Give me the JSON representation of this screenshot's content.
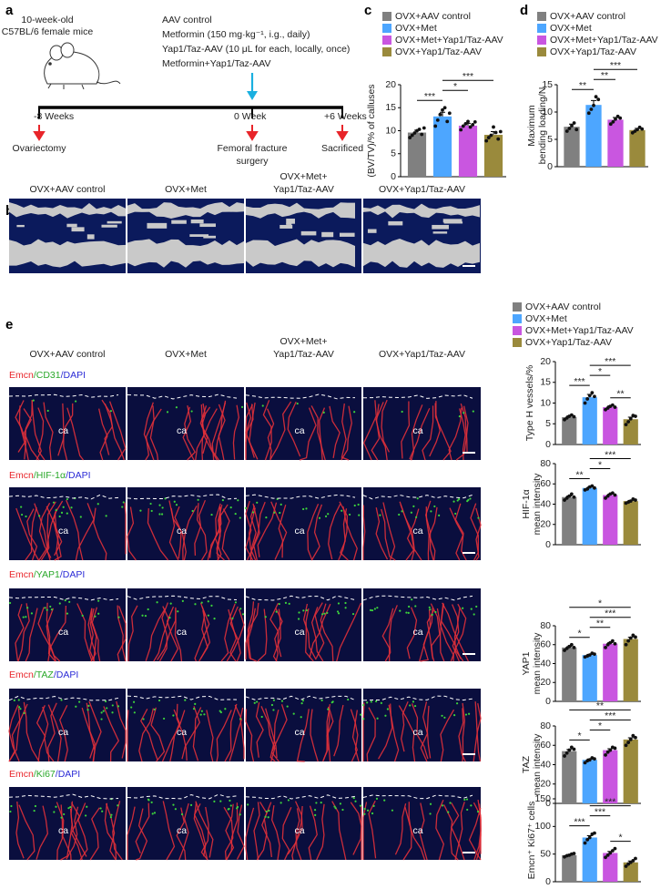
{
  "panel_labels": [
    "a",
    "b",
    "c",
    "d",
    "e"
  ],
  "groups": {
    "names": [
      "OVX+AAV control",
      "OVX+Met",
      "OVX+Met+Yap1/Taz-AAV",
      "OVX+Yap1/Taz-AAV"
    ],
    "colors": [
      "#808080",
      "#4da6ff",
      "#c956e0",
      "#9a8a3c"
    ]
  },
  "timeline": {
    "mouse": [
      "10-week-old",
      "C57BL/6 female mice"
    ],
    "treatments": [
      "AAV control",
      "Metformin (150 mg·kg⁻¹, i.g., daily)",
      "Yap1/Taz-AAV (10 μL for each, locally, once)",
      "Metformin+Yap1/Taz-AAV"
    ],
    "timepoints": [
      "-8 Weeks",
      "0 Week",
      "+6 Weeks"
    ],
    "events": [
      [
        "Ovariectomy"
      ],
      [
        "Femoral fracture",
        "surgery"
      ],
      [
        "Sacrificed"
      ]
    ]
  },
  "column_headers": [
    [
      "OVX+AAV control"
    ],
    [
      "OVX+Met"
    ],
    [
      "OVX+Met+",
      "Yap1/Taz-AAV"
    ],
    [
      "OVX+Yap1/Taz-AAV"
    ]
  ],
  "stain_rows": [
    [
      {
        "text": "Emcn",
        "color": "#e8252a"
      },
      {
        "text": "/CD31",
        "color": "#2aa82a"
      },
      {
        "text": "/DAPI",
        "color": "#2b2bd6"
      }
    ],
    [
      {
        "text": "Emcn",
        "color": "#e8252a"
      },
      {
        "text": "/HIF-1α",
        "color": "#2aa82a"
      },
      {
        "text": "/DAPI",
        "color": "#2b2bd6"
      }
    ],
    [
      {
        "text": "Emcn",
        "color": "#e8252a"
      },
      {
        "text": "/YAP1",
        "color": "#2aa82a"
      },
      {
        "text": "/DAPI",
        "color": "#2b2bd6"
      }
    ],
    [
      {
        "text": "Emcn",
        "color": "#e8252a"
      },
      {
        "text": "/TAZ",
        "color": "#2aa82a"
      },
      {
        "text": "/DAPI",
        "color": "#2b2bd6"
      }
    ],
    [
      {
        "text": "Emcn",
        "color": "#e8252a"
      },
      {
        "text": "/Ki67",
        "color": "#2aa82a"
      },
      {
        "text": "/DAPI",
        "color": "#2b2bd6"
      }
    ]
  ],
  "image_label": "ca",
  "chart_data": [
    {
      "type": "bar",
      "ylabel": [
        "(BV/TV)/% of calluses"
      ],
      "ylim": [
        0,
        20
      ],
      "yticks": [
        0,
        5,
        10,
        15,
        20
      ],
      "values": [
        9.6,
        13.1,
        11.1,
        9.1
      ],
      "errors": [
        0.5,
        0.9,
        0.5,
        0.7
      ],
      "points": [
        [
          8.5,
          9.0,
          9.5,
          10.0,
          10.3,
          9.2,
          10.6
        ],
        [
          11.0,
          12.3,
          13.5,
          14.5,
          15.0,
          12.0,
          13.8
        ],
        [
          10.2,
          11.0,
          11.5,
          12.0,
          10.8,
          11.3,
          11.9
        ],
        [
          7.8,
          8.5,
          9.0,
          10.8,
          9.6,
          8.2,
          9.8
        ]
      ],
      "significance": [
        {
          "from": 0,
          "to": 1,
          "label": "***"
        },
        {
          "from": 1,
          "to": 2,
          "label": "*"
        },
        {
          "from": 1,
          "to": 3,
          "label": "***"
        }
      ]
    },
    {
      "type": "bar",
      "ylabel": [
        "Maximum",
        "bending loading/N"
      ],
      "ylim": [
        0,
        15
      ],
      "yticks": [
        0,
        5,
        10,
        15
      ],
      "values": [
        7.3,
        11.3,
        8.6,
        6.7
      ],
      "errors": [
        0.5,
        0.8,
        0.4,
        0.3
      ],
      "points": [
        [
          6.5,
          7.0,
          7.5,
          8.0,
          6.8
        ],
        [
          9.8,
          10.5,
          11.2,
          12.8,
          12.3
        ],
        [
          7.8,
          8.2,
          8.7,
          9.2,
          8.9
        ],
        [
          6.2,
          6.5,
          6.8,
          7.2,
          6.9
        ]
      ],
      "significance": [
        {
          "from": 0,
          "to": 1,
          "label": "**"
        },
        {
          "from": 1,
          "to": 2,
          "label": "**"
        },
        {
          "from": 1,
          "to": 3,
          "label": "***"
        }
      ]
    },
    {
      "type": "bar",
      "ylabel": [
        "Type H vessels/%"
      ],
      "ylim": [
        0,
        20
      ],
      "yticks": [
        0,
        5,
        10,
        15,
        20
      ],
      "values": [
        6.6,
        11.4,
        9.0,
        6.1
      ],
      "errors": [
        0.3,
        0.7,
        0.3,
        0.5
      ],
      "points": [
        [
          6.0,
          6.4,
          6.8,
          7.1,
          6.7
        ],
        [
          10.0,
          11.0,
          11.8,
          12.5,
          11.6
        ],
        [
          8.4,
          8.8,
          9.2,
          9.5,
          9.0
        ],
        [
          4.8,
          5.5,
          6.2,
          7.0,
          6.8
        ]
      ],
      "significance": [
        {
          "from": 0,
          "to": 1,
          "label": "***"
        },
        {
          "from": 2,
          "to": 3,
          "label": "**"
        },
        {
          "from": 1,
          "to": 2,
          "label": "*"
        },
        {
          "from": 1,
          "to": 3,
          "label": "***"
        }
      ]
    },
    {
      "type": "bar",
      "ylabel": [
        "HIF-1α",
        "mean intensity"
      ],
      "ylim": [
        0,
        80
      ],
      "yticks": [
        0,
        20,
        40,
        60,
        80
      ],
      "values": [
        47,
        56,
        49,
        43
      ],
      "errors": [
        1.1,
        0.8,
        0.9,
        0.7
      ],
      "points": [
        [
          44,
          46,
          48,
          50,
          47
        ],
        [
          54,
          55,
          57,
          58,
          56
        ],
        [
          46,
          48,
          50,
          51,
          49
        ],
        [
          41,
          42,
          43,
          45,
          44
        ]
      ],
      "significance": [
        {
          "from": 0,
          "to": 1,
          "label": "**"
        },
        {
          "from": 1,
          "to": 2,
          "label": "*"
        },
        {
          "from": 1,
          "to": 3,
          "label": "***"
        }
      ]
    },
    {
      "type": "bar",
      "ylabel": [
        "YAP1",
        "mean intensity"
      ],
      "ylim": [
        0,
        80
      ],
      "yticks": [
        0,
        20,
        40,
        60,
        80
      ],
      "values": [
        57,
        49,
        61,
        66
      ],
      "errors": [
        1.0,
        0.7,
        1.2,
        1.8
      ],
      "points": [
        [
          54,
          56,
          58,
          60,
          57
        ],
        [
          47,
          48,
          49,
          51,
          50
        ],
        [
          57,
          60,
          62,
          64,
          61
        ],
        [
          60,
          64,
          67,
          70,
          68
        ]
      ],
      "significance": [
        {
          "from": 0,
          "to": 1,
          "label": "*"
        },
        {
          "from": 1,
          "to": 2,
          "label": "**"
        },
        {
          "from": 1,
          "to": 3,
          "label": "***"
        },
        {
          "from": 0,
          "to": 3,
          "label": "*"
        }
      ]
    },
    {
      "type": "bar",
      "ylabel": [
        "TAZ",
        "mean intensity"
      ],
      "ylim": [
        0,
        80
      ],
      "yticks": [
        0,
        20,
        40,
        60,
        80
      ],
      "values": [
        54,
        45,
        55,
        66
      ],
      "errors": [
        1.6,
        0.9,
        1.5,
        1.8
      ],
      "points": [
        [
          49,
          52,
          55,
          58,
          56
        ],
        [
          42,
          44,
          45,
          47,
          46
        ],
        [
          50,
          53,
          55,
          58,
          57
        ],
        [
          60,
          63,
          66,
          70,
          68
        ]
      ],
      "significance": [
        {
          "from": 0,
          "to": 1,
          "label": "*"
        },
        {
          "from": 1,
          "to": 2,
          "label": "*"
        },
        {
          "from": 1,
          "to": 3,
          "label": "***"
        },
        {
          "from": 0,
          "to": 3,
          "label": "**"
        }
      ]
    },
    {
      "type": "bar",
      "ylabel": [
        "Emcn⁺ Ki67⁺ cells"
      ],
      "ylim": [
        0,
        150
      ],
      "yticks": [
        0,
        50,
        100,
        150
      ],
      "values": [
        48,
        80,
        52,
        35
      ],
      "errors": [
        1.2,
        3.3,
        2.8,
        2.5
      ],
      "points": [
        [
          45,
          47,
          48,
          50,
          51
        ],
        [
          70,
          76,
          80,
          86,
          88
        ],
        [
          44,
          48,
          52,
          56,
          60
        ],
        [
          28,
          32,
          35,
          38,
          42
        ]
      ],
      "significance": [
        {
          "from": 0,
          "to": 1,
          "label": "***"
        },
        {
          "from": 2,
          "to": 3,
          "label": "*"
        },
        {
          "from": 1,
          "to": 2,
          "label": "***"
        },
        {
          "from": 1,
          "to": 3,
          "label": "***"
        }
      ]
    }
  ]
}
